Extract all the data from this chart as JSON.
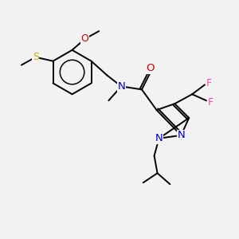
{
  "background_color": "#f2f2f2",
  "bond_color": "#000000",
  "atom_colors": {
    "N": "#0000cc",
    "O": "#cc0000",
    "S": "#ccaa00",
    "F": "#ff44aa",
    "C": "#000000"
  },
  "figsize": [
    3.0,
    3.0
  ],
  "dpi": 100,
  "bond_lw": 1.4,
  "font_size": 8.5
}
